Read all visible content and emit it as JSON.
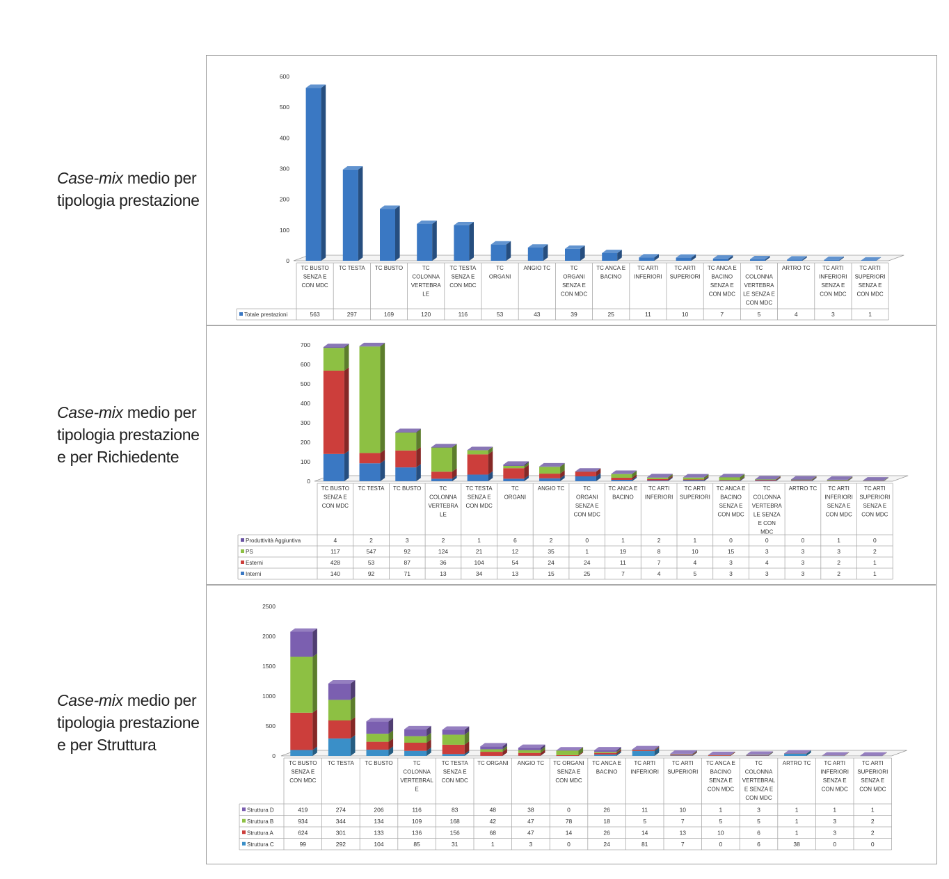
{
  "captions": [
    {
      "em": "Case-mix",
      "line1_rest": " medio per",
      "line2": "tipologia prestazione",
      "line3": ""
    },
    {
      "em": "Case-mix",
      "line1_rest": " medio per",
      "line2": "tipologia prestazione",
      "line3": "e per Richiedente"
    },
    {
      "em": "Case-mix",
      "line1_rest": " medio per",
      "line2": "tipologia prestazione",
      "line3": "e per Struttura"
    }
  ],
  "chart_data": [
    {
      "type": "bar",
      "stacked": false,
      "three_d": true,
      "ylim": [
        0,
        600
      ],
      "yticks": [
        0,
        100,
        200,
        300,
        400,
        500,
        600
      ],
      "categories": [
        [
          "TC BUSTO",
          "SENZA E",
          "CON MDC"
        ],
        [
          "TC TESTA"
        ],
        [
          "TC BUSTO"
        ],
        [
          "TC",
          "COLONNA",
          "VERTEBRA",
          "LE"
        ],
        [
          "TC TESTA",
          "SENZA E",
          "CON MDC"
        ],
        [
          "TC",
          "ORGANI"
        ],
        [
          "ANGIO TC"
        ],
        [
          "TC",
          "ORGANI",
          "SENZA E",
          "CON MDC"
        ],
        [
          "TC ANCA E",
          "BACINO"
        ],
        [
          "TC ARTI",
          "INFERIORI"
        ],
        [
          "TC ARTI",
          "SUPERIORI"
        ],
        [
          "TC ANCA E",
          "BACINO",
          "SENZA E",
          "CON MDC"
        ],
        [
          "TC",
          "COLONNA",
          "VERTEBRA",
          "LE SENZA E",
          "CON MDC"
        ],
        [
          "ARTRO TC"
        ],
        [
          "TC ARTI",
          "INFERIORI",
          "SENZA E",
          "CON MDC"
        ],
        [
          "TC ARTI",
          "SUPERIORI",
          "SENZA E",
          "CON MDC"
        ]
      ],
      "series": [
        {
          "name": "Totale prestazioni",
          "color": "#3a78c3",
          "values": [
            563,
            297,
            169,
            120,
            116,
            53,
            43,
            39,
            25,
            11,
            10,
            7,
            5,
            4,
            3,
            1
          ]
        }
      ]
    },
    {
      "type": "bar",
      "stacked": true,
      "three_d": true,
      "ylim": [
        0,
        700
      ],
      "yticks": [
        0,
        100,
        200,
        300,
        400,
        500,
        600,
        700
      ],
      "categories": [
        [
          "TC BUSTO",
          "SENZA E",
          "CON MDC"
        ],
        [
          "TC TESTA"
        ],
        [
          "TC BUSTO"
        ],
        [
          "TC",
          "COLONNA",
          "VERTEBRA",
          "LE"
        ],
        [
          "TC TESTA",
          "SENZA E",
          "CON MDC"
        ],
        [
          "TC",
          "ORGANI"
        ],
        [
          "ANGIO TC"
        ],
        [
          "TC",
          "ORGANI",
          "SENZA E",
          "CON MDC"
        ],
        [
          "TC ANCA E",
          "BACINO"
        ],
        [
          "TC ARTI",
          "INFERIORI"
        ],
        [
          "TC ARTI",
          "SUPERIORI"
        ],
        [
          "TC ANCA E",
          "BACINO",
          "SENZA E",
          "CON MDC"
        ],
        [
          "TC",
          "COLONNA",
          "VERTEBRA",
          "LE SENZA",
          "E CON",
          "MDC"
        ],
        [
          "ARTRO TC"
        ],
        [
          "TC ARTI",
          "INFERIORI",
          "SENZA E",
          "CON MDC"
        ],
        [
          "TC ARTI",
          "SUPERIORI",
          "SENZA E",
          "CON MDC"
        ]
      ],
      "series": [
        {
          "name": "Produttività Aggiuntiva",
          "color": "#6a54a3",
          "values": [
            4,
            2,
            3,
            2,
            1,
            6,
            2,
            0,
            1,
            2,
            1,
            0,
            0,
            0,
            1,
            0
          ]
        },
        {
          "name": "PS",
          "color": "#8dc043",
          "values": [
            117,
            547,
            92,
            124,
            21,
            12,
            35,
            1,
            19,
            8,
            10,
            15,
            3,
            3,
            3,
            2
          ]
        },
        {
          "name": "Esterni",
          "color": "#cc3e3b",
          "values": [
            428,
            53,
            87,
            36,
            104,
            54,
            24,
            24,
            11,
            7,
            4,
            3,
            4,
            3,
            2,
            1
          ]
        },
        {
          "name": "Interni",
          "color": "#3a78c3",
          "values": [
            140,
            92,
            71,
            13,
            34,
            13,
            15,
            25,
            7,
            4,
            5,
            3,
            3,
            3,
            2,
            1
          ]
        }
      ]
    },
    {
      "type": "bar",
      "stacked": true,
      "three_d": true,
      "ylim": [
        0,
        2500
      ],
      "yticks": [
        0,
        500,
        1000,
        1500,
        2000,
        2500
      ],
      "categories": [
        [
          "TC BUSTO",
          "SENZA E",
          "CON MDC"
        ],
        [
          "TC TESTA"
        ],
        [
          "TC BUSTO"
        ],
        [
          "TC",
          "COLONNA",
          "VERTEBRAL",
          "E"
        ],
        [
          "TC TESTA",
          "SENZA E",
          "CON MDC"
        ],
        [
          "TC ORGANI"
        ],
        [
          "ANGIO TC"
        ],
        [
          "TC ORGANI",
          "SENZA E",
          "CON MDC"
        ],
        [
          "TC ANCA E",
          "BACINO"
        ],
        [
          "TC ARTI",
          "INFERIORI"
        ],
        [
          "TC ARTI",
          "SUPERIORI"
        ],
        [
          "TC ANCA E",
          "BACINO",
          "SENZA E",
          "CON MDC"
        ],
        [
          "TC",
          "COLONNA",
          "VERTEBRAL",
          "E SENZA E",
          "CON MDC"
        ],
        [
          "ARTRO TC"
        ],
        [
          "TC ARTI",
          "INFERIORI",
          "SENZA E",
          "CON MDC"
        ],
        [
          "TC ARTI",
          "SUPERIORI",
          "SENZA E",
          "CON MDC"
        ]
      ],
      "series": [
        {
          "name": "Struttura D",
          "color": "#7b5fb0",
          "values": [
            419,
            274,
            206,
            116,
            83,
            48,
            38,
            0,
            26,
            11,
            10,
            1,
            3,
            1,
            1,
            1
          ]
        },
        {
          "name": "Struttura B",
          "color": "#8dc043",
          "values": [
            934,
            344,
            134,
            109,
            168,
            42,
            47,
            78,
            18,
            5,
            7,
            5,
            5,
            1,
            3,
            2
          ]
        },
        {
          "name": "Struttura A",
          "color": "#cc3e3b",
          "values": [
            624,
            301,
            133,
            136,
            156,
            68,
            47,
            14,
            26,
            14,
            13,
            10,
            6,
            1,
            3,
            2
          ]
        },
        {
          "name": "Struttura C",
          "color": "#3a8fc8",
          "values": [
            99,
            292,
            104,
            85,
            31,
            1,
            3,
            0,
            24,
            81,
            7,
            0,
            6,
            38,
            0,
            0
          ]
        }
      ]
    }
  ]
}
